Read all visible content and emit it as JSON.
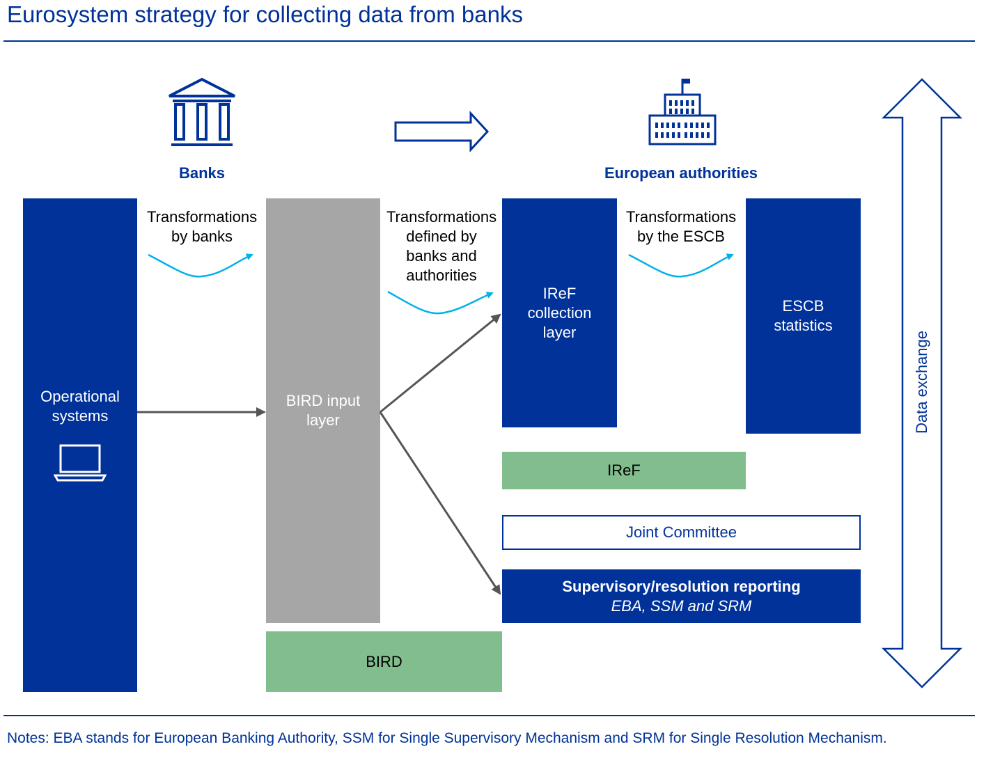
{
  "title": "Eurosystem strategy for collecting data from banks",
  "headings": {
    "banks": "Banks",
    "authorities": "European authorities"
  },
  "transformations": {
    "by_banks": [
      "Transformations",
      "by banks"
    ],
    "defined": [
      "Transformations",
      "defined by",
      "banks and",
      "authorities"
    ],
    "by_escb": [
      "Transformations",
      "by the ESCB"
    ]
  },
  "boxes": {
    "operational": [
      "Operational",
      "systems"
    ],
    "bird_input": [
      "BIRD input",
      "layer"
    ],
    "iref_collection": [
      "IReF",
      "collection",
      "layer"
    ],
    "escb_statistics": [
      "ESCB",
      "statistics"
    ],
    "iref": "IReF",
    "joint_committee": "Joint Committee",
    "supervisory_title": "Supervisory/resolution reporting",
    "supervisory_sub": "EBA, SSM and SRM",
    "bird": "BIRD"
  },
  "data_exchange": "Data exchange",
  "notes": "Notes: EBA stands for European Banking Authority, SSM for Single Supervisory Mechanism and SRM for Single Resolution Mechanism.",
  "icons": [
    "bank-building-icon",
    "authority-building-icon",
    "laptop-icon",
    "right-arrow-icon",
    "double-arrow-icon"
  ],
  "colors": {
    "navy": "#003299",
    "grey": "#a6a6a6",
    "green": "#81bd8d",
    "cyan": "#00b1ea",
    "arrow_grey": "#555555"
  }
}
